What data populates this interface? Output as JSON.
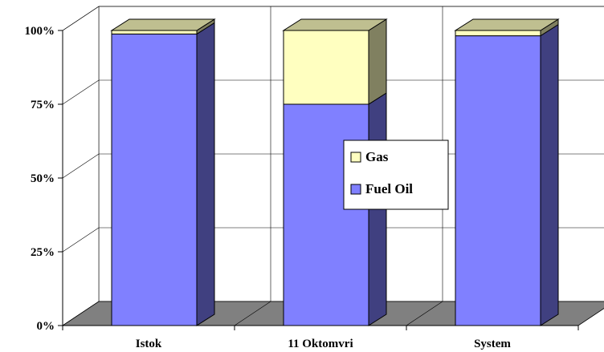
{
  "chart_data": {
    "type": "bar",
    "stacked": true,
    "percent": true,
    "three_d": true,
    "title": "",
    "xlabel": "",
    "ylabel": "",
    "ylim": [
      0,
      100
    ],
    "y_ticks": [
      "0%",
      "25%",
      "50%",
      "75%",
      "100%"
    ],
    "categories": [
      "Istok",
      "11 Oktomvri",
      "System"
    ],
    "series": [
      {
        "name": "Fuel Oil",
        "values": [
          98.8,
          75,
          98.2
        ],
        "color": "#8080FF"
      },
      {
        "name": "Gas",
        "values": [
          1.2,
          25,
          1.8
        ],
        "color": "#FFFFC0"
      }
    ],
    "legend": {
      "position": "center-right",
      "entries": [
        "Gas",
        "Fuel Oil"
      ]
    },
    "grid": true
  }
}
